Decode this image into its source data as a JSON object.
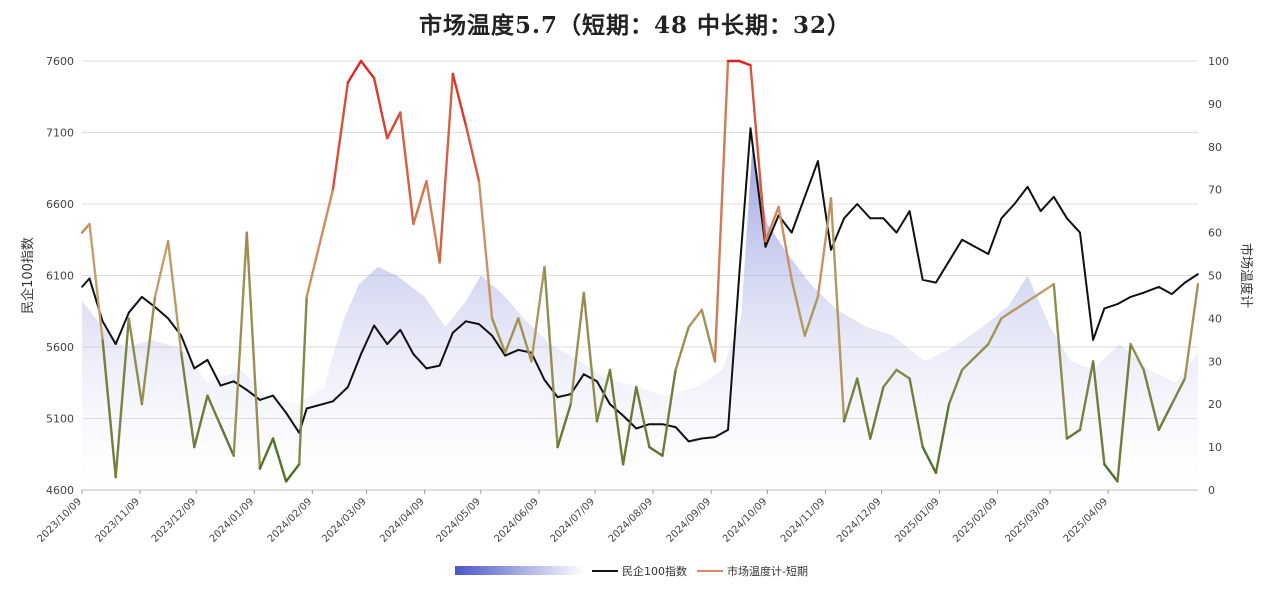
{
  "chart_data": {
    "type": "line",
    "title": "市场温度5.7（短期：48 中长期：32）",
    "ylabel": "民企100指数",
    "y2label": "市场温度计",
    "ylim": [
      4600,
      7600
    ],
    "y2lim": [
      0,
      100
    ],
    "yticks": [
      "4600",
      "5100",
      "5600",
      "6100",
      "6600",
      "7100",
      "7600"
    ],
    "y2ticks": [
      "0",
      "10",
      "20",
      "30",
      "40",
      "50",
      "60",
      "70",
      "80",
      "90",
      "100"
    ],
    "x_range": [
      "2023-10-09",
      "2025-05-27"
    ],
    "xtick_labels": [
      "2023/10/09",
      "2023/11/09",
      "2023/12/09",
      "2024/01/09",
      "2024/02/09",
      "2024/03/09",
      "2024/04/09",
      "2024/05/09",
      "2024/06/09",
      "2024/07/09",
      "2024/08/09",
      "2024/09/09",
      "2024/10/09",
      "2024/11/09",
      "2024/12/09",
      "2025/01/09",
      "2025/02/09",
      "2025/03/09",
      "2025/04/09"
    ],
    "grid": true,
    "legend_position": "bottom",
    "colors": {
      "index_line": "#111111",
      "short_hot": "#e0201a",
      "short_mid": "#c8a26e",
      "short_cold": "#3f6a1e",
      "area_top": "#4b57c8",
      "area_bottom": "#ffffff"
    },
    "series": [
      {
        "name": "",
        "axis": "right",
        "kind": "area",
        "x": [
          "2023-10-09",
          "2023-10-20",
          "2023-11-01",
          "2023-11-15",
          "2023-12-01",
          "2023-12-15",
          "2024-01-02",
          "2024-01-15",
          "2024-02-01",
          "2024-02-15",
          "2024-02-26",
          "2024-03-05",
          "2024-03-15",
          "2024-03-25",
          "2024-04-09",
          "2024-04-20",
          "2024-05-01",
          "2024-05-09",
          "2024-05-20",
          "2024-06-01",
          "2024-06-15",
          "2024-07-01",
          "2024-07-15",
          "2024-08-01",
          "2024-08-15",
          "2024-09-01",
          "2024-09-15",
          "2024-09-25",
          "2024-10-01",
          "2024-10-09",
          "2024-10-20",
          "2024-11-01",
          "2024-11-15",
          "2024-12-01",
          "2024-12-15",
          "2025-01-01",
          "2025-01-15",
          "2025-02-01",
          "2025-02-15",
          "2025-02-25",
          "2025-03-09",
          "2025-03-20",
          "2025-04-01",
          "2025-04-15",
          "2025-05-01",
          "2025-05-15",
          "2025-05-27"
        ],
        "values": [
          44,
          38,
          33,
          35,
          33,
          25,
          28,
          22,
          20,
          24,
          40,
          48,
          52,
          50,
          45,
          38,
          44,
          50,
          46,
          40,
          34,
          30,
          26,
          24,
          22,
          24,
          28,
          40,
          80,
          62,
          55,
          48,
          42,
          38,
          36,
          30,
          33,
          38,
          43,
          50,
          38,
          30,
          28,
          34,
          28,
          25,
          32
        ]
      },
      {
        "name": "民企100指数",
        "axis": "left",
        "kind": "line",
        "x": [
          "2023-10-09",
          "2023-10-13",
          "2023-10-20",
          "2023-10-27",
          "2023-11-03",
          "2023-11-10",
          "2023-11-17",
          "2023-11-24",
          "2023-12-01",
          "2023-12-08",
          "2023-12-15",
          "2023-12-22",
          "2023-12-29",
          "2024-01-05",
          "2024-01-12",
          "2024-01-19",
          "2024-01-26",
          "2024-02-02",
          "2024-02-06",
          "2024-02-20",
          "2024-02-28",
          "2024-03-06",
          "2024-03-13",
          "2024-03-20",
          "2024-03-27",
          "2024-04-03",
          "2024-04-10",
          "2024-04-17",
          "2024-04-24",
          "2024-05-01",
          "2024-05-08",
          "2024-05-15",
          "2024-05-22",
          "2024-05-29",
          "2024-06-05",
          "2024-06-12",
          "2024-06-19",
          "2024-06-26",
          "2024-07-03",
          "2024-07-10",
          "2024-07-17",
          "2024-07-24",
          "2024-07-31",
          "2024-08-07",
          "2024-08-14",
          "2024-08-21",
          "2024-08-28",
          "2024-09-04",
          "2024-09-11",
          "2024-09-18",
          "2024-09-24",
          "2024-09-30",
          "2024-10-08",
          "2024-10-15",
          "2024-10-22",
          "2024-10-29",
          "2024-11-05",
          "2024-11-12",
          "2024-11-19",
          "2024-11-26",
          "2024-12-03",
          "2024-12-10",
          "2024-12-17",
          "2024-12-24",
          "2024-12-31",
          "2025-01-07",
          "2025-01-14",
          "2025-01-21",
          "2025-02-04",
          "2025-02-11",
          "2025-02-18",
          "2025-02-25",
          "2025-03-04",
          "2025-03-11",
          "2025-03-18",
          "2025-03-25",
          "2025-04-01",
          "2025-04-07",
          "2025-04-14",
          "2025-04-21",
          "2025-04-28",
          "2025-05-06",
          "2025-05-13",
          "2025-05-20",
          "2025-05-27"
        ],
        "values": [
          6020,
          6080,
          5780,
          5620,
          5840,
          5950,
          5880,
          5800,
          5680,
          5450,
          5510,
          5330,
          5360,
          5300,
          5230,
          5260,
          5140,
          5000,
          5170,
          5220,
          5320,
          5550,
          5750,
          5620,
          5720,
          5550,
          5450,
          5470,
          5700,
          5780,
          5760,
          5680,
          5540,
          5580,
          5560,
          5370,
          5250,
          5270,
          5410,
          5360,
          5200,
          5120,
          5030,
          5060,
          5060,
          5040,
          4940,
          4960,
          4970,
          5020,
          6100,
          7130,
          6300,
          6520,
          6400,
          6650,
          6900,
          6280,
          6500,
          6600,
          6500,
          6500,
          6400,
          6550,
          6070,
          6050,
          6200,
          6350,
          6250,
          6500,
          6600,
          6720,
          6550,
          6650,
          6500,
          6400,
          5650,
          5870,
          5900,
          5950,
          5980,
          6020,
          5970,
          6050,
          6110
        ]
      },
      {
        "name": "市场温度计-短期",
        "axis": "right",
        "kind": "line",
        "x": [
          "2023-10-09",
          "2023-10-13",
          "2023-10-20",
          "2023-10-27",
          "2023-11-03",
          "2023-11-10",
          "2023-11-17",
          "2023-11-24",
          "2023-12-01",
          "2023-12-08",
          "2023-12-15",
          "2023-12-22",
          "2023-12-29",
          "2024-01-05",
          "2024-01-12",
          "2024-01-19",
          "2024-01-26",
          "2024-02-02",
          "2024-02-06",
          "2024-02-20",
          "2024-02-28",
          "2024-03-06",
          "2024-03-13",
          "2024-03-20",
          "2024-03-27",
          "2024-04-03",
          "2024-04-10",
          "2024-04-17",
          "2024-04-24",
          "2024-05-01",
          "2024-05-08",
          "2024-05-15",
          "2024-05-22",
          "2024-05-29",
          "2024-06-05",
          "2024-06-12",
          "2024-06-19",
          "2024-06-26",
          "2024-07-03",
          "2024-07-10",
          "2024-07-17",
          "2024-07-24",
          "2024-07-31",
          "2024-08-07",
          "2024-08-14",
          "2024-08-21",
          "2024-08-28",
          "2024-09-04",
          "2024-09-11",
          "2024-09-18",
          "2024-09-24",
          "2024-09-30",
          "2024-10-08",
          "2024-10-15",
          "2024-10-22",
          "2024-10-29",
          "2024-11-05",
          "2024-11-12",
          "2024-11-19",
          "2024-11-26",
          "2024-12-03",
          "2024-12-10",
          "2024-12-17",
          "2024-12-24",
          "2024-12-31",
          "2025-01-07",
          "2025-01-14",
          "2025-01-21",
          "2025-02-04",
          "2025-02-11",
          "2025-02-18",
          "2025-02-25",
          "2025-03-04",
          "2025-03-11",
          "2025-03-18",
          "2025-03-25",
          "2025-04-01",
          "2025-04-07",
          "2025-04-14",
          "2025-04-21",
          "2025-04-28",
          "2025-05-06",
          "2025-05-13",
          "2025-05-20",
          "2025-05-27"
        ],
        "values": [
          60,
          62,
          35,
          3,
          40,
          20,
          45,
          58,
          32,
          10,
          22,
          15,
          8,
          60,
          5,
          12,
          2,
          6,
          45,
          70,
          95,
          100,
          96,
          82,
          88,
          62,
          72,
          53,
          97,
          85,
          72,
          40,
          32,
          40,
          30,
          52,
          10,
          20,
          46,
          16,
          28,
          6,
          24,
          10,
          8,
          28,
          38,
          42,
          30,
          100,
          100,
          99,
          58,
          66,
          49,
          36,
          45,
          68,
          16,
          26,
          12,
          24,
          28,
          26,
          10,
          4,
          20,
          28,
          34,
          40,
          42,
          44,
          46,
          48,
          12,
          14,
          30,
          6,
          2,
          34,
          28,
          14,
          20,
          26,
          48
        ]
      }
    ]
  },
  "legend": {
    "items": [
      {
        "label": ""
      },
      {
        "label": "民企100指数"
      },
      {
        "label": "市场温度计-短期"
      }
    ]
  }
}
